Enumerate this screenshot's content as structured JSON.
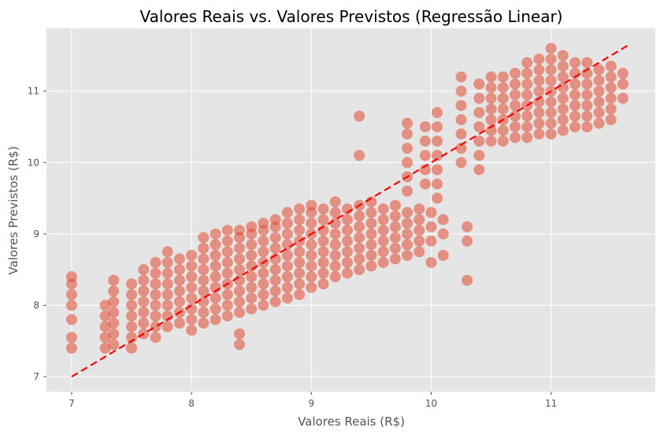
{
  "chart_data": {
    "type": "scatter",
    "title": "Valores Reais vs. Valores Previstos (Regressão Linear)",
    "xlabel": "Valores Reais (R$)",
    "ylabel": "Valores Previstos (R$)",
    "xlim": [
      6.79,
      11.87
    ],
    "ylim": [
      6.79,
      11.88
    ],
    "xticks": [
      7,
      8,
      9,
      10,
      11
    ],
    "yticks": [
      7,
      8,
      9,
      10,
      11
    ],
    "grid": true,
    "style": "ggplot",
    "point_color": "#E24A33",
    "point_alpha": 0.35,
    "reference_line": {
      "from": [
        7.0,
        7.0
      ],
      "to": [
        11.65,
        11.65
      ],
      "color": "#FF0000",
      "style": "dashed"
    },
    "point_groups": [
      {
        "x": 7.0,
        "y": [
          7.4,
          7.55,
          7.8,
          8.0,
          8.15,
          8.3,
          8.4
        ]
      },
      {
        "x": 7.28,
        "y": [
          7.4,
          7.55,
          7.7,
          7.85,
          8.0
        ]
      },
      {
        "x": 7.35,
        "y": [
          7.45,
          7.6,
          7.75,
          7.9,
          8.05,
          8.2,
          8.35
        ]
      },
      {
        "x": 7.5,
        "y": [
          7.4,
          7.55,
          7.7,
          7.85,
          8.0,
          8.15,
          8.3
        ]
      },
      {
        "x": 7.6,
        "y": [
          7.6,
          7.75,
          7.9,
          8.05,
          8.2,
          8.35,
          8.5
        ]
      },
      {
        "x": 7.7,
        "y": [
          7.55,
          7.7,
          7.85,
          8.0,
          8.15,
          8.3,
          8.45,
          8.6
        ]
      },
      {
        "x": 7.8,
        "y": [
          7.7,
          7.85,
          8.0,
          8.15,
          8.3,
          8.45,
          8.6,
          8.75
        ]
      },
      {
        "x": 7.9,
        "y": [
          7.75,
          7.9,
          8.05,
          8.2,
          8.35,
          8.5,
          8.65
        ]
      },
      {
        "x": 8.0,
        "y": [
          7.65,
          7.8,
          7.95,
          8.1,
          8.25,
          8.4,
          8.55,
          8.7
        ]
      },
      {
        "x": 8.1,
        "y": [
          7.75,
          7.9,
          8.05,
          8.2,
          8.35,
          8.5,
          8.65,
          8.8,
          8.95
        ]
      },
      {
        "x": 8.2,
        "y": [
          7.8,
          7.95,
          8.1,
          8.25,
          8.4,
          8.55,
          8.7,
          8.85,
          9.0
        ]
      },
      {
        "x": 8.3,
        "y": [
          7.85,
          8.0,
          8.15,
          8.3,
          8.45,
          8.6,
          8.75,
          8.9,
          9.05
        ]
      },
      {
        "x": 8.4,
        "y": [
          7.45,
          7.6,
          7.9,
          8.05,
          8.2,
          8.35,
          8.5,
          8.65,
          8.8,
          8.95,
          9.05
        ]
      },
      {
        "x": 8.5,
        "y": [
          7.95,
          8.1,
          8.25,
          8.4,
          8.55,
          8.7,
          8.85,
          9.0,
          9.1
        ]
      },
      {
        "x": 8.6,
        "y": [
          8.0,
          8.15,
          8.3,
          8.45,
          8.6,
          8.75,
          8.9,
          9.05,
          9.15
        ]
      },
      {
        "x": 8.7,
        "y": [
          8.05,
          8.2,
          8.35,
          8.5,
          8.65,
          8.8,
          8.95,
          9.1,
          9.2
        ]
      },
      {
        "x": 8.8,
        "y": [
          8.1,
          8.25,
          8.4,
          8.55,
          8.7,
          8.85,
          9.0,
          9.15,
          9.3
        ]
      },
      {
        "x": 8.9,
        "y": [
          8.15,
          8.3,
          8.45,
          8.6,
          8.75,
          8.9,
          9.05,
          9.2,
          9.35
        ]
      },
      {
        "x": 9.0,
        "y": [
          8.25,
          8.4,
          8.55,
          8.7,
          8.85,
          9.0,
          9.15,
          9.3,
          9.4
        ]
      },
      {
        "x": 9.1,
        "y": [
          8.3,
          8.45,
          8.6,
          8.75,
          8.9,
          9.05,
          9.2,
          9.35
        ]
      },
      {
        "x": 9.2,
        "y": [
          8.4,
          8.55,
          8.7,
          8.85,
          9.0,
          9.15,
          9.3,
          9.45
        ]
      },
      {
        "x": 9.3,
        "y": [
          8.45,
          8.6,
          8.75,
          8.9,
          9.05,
          9.2,
          9.35
        ]
      },
      {
        "x": 9.4,
        "y": [
          8.5,
          8.65,
          8.8,
          8.95,
          9.1,
          9.25,
          9.4,
          10.1,
          10.65
        ]
      },
      {
        "x": 9.5,
        "y": [
          8.55,
          8.7,
          8.85,
          9.0,
          9.15,
          9.3,
          9.45
        ]
      },
      {
        "x": 9.6,
        "y": [
          8.6,
          8.75,
          8.9,
          9.05,
          9.2,
          9.35
        ]
      },
      {
        "x": 9.7,
        "y": [
          8.65,
          8.8,
          8.95,
          9.1,
          9.25,
          9.4
        ]
      },
      {
        "x": 9.8,
        "y": [
          8.7,
          8.85,
          9.0,
          9.15,
          9.3,
          9.6,
          9.8,
          10.0,
          10.2,
          10.4,
          10.55
        ]
      },
      {
        "x": 9.9,
        "y": [
          8.75,
          8.9,
          9.05,
          9.2,
          9.35
        ]
      },
      {
        "x": 9.95,
        "y": [
          9.7,
          9.9,
          10.1,
          10.3,
          10.5
        ]
      },
      {
        "x": 10.0,
        "y": [
          8.6,
          8.9,
          9.1,
          9.3
        ]
      },
      {
        "x": 10.05,
        "y": [
          9.5,
          9.7,
          9.9,
          10.1,
          10.3,
          10.5,
          10.7
        ]
      },
      {
        "x": 10.1,
        "y": [
          8.7,
          9.0,
          9.2
        ]
      },
      {
        "x": 10.25,
        "y": [
          10.0,
          10.2,
          10.4,
          10.6,
          10.8,
          11.0,
          11.2
        ]
      },
      {
        "x": 10.3,
        "y": [
          8.35,
          8.9,
          9.1
        ]
      },
      {
        "x": 10.4,
        "y": [
          9.9,
          10.1,
          10.3,
          10.5,
          10.7,
          10.9,
          11.1
        ]
      },
      {
        "x": 10.5,
        "y": [
          10.3,
          10.45,
          10.6,
          10.75,
          10.9,
          11.05,
          11.2
        ]
      },
      {
        "x": 10.6,
        "y": [
          10.3,
          10.45,
          10.6,
          10.75,
          10.9,
          11.05,
          11.2
        ]
      },
      {
        "x": 10.7,
        "y": [
          10.35,
          10.5,
          10.65,
          10.8,
          10.95,
          11.1,
          11.25
        ]
      },
      {
        "x": 10.8,
        "y": [
          10.35,
          10.5,
          10.65,
          10.8,
          10.95,
          11.1,
          11.25,
          11.4
        ]
      },
      {
        "x": 10.9,
        "y": [
          10.4,
          10.55,
          10.7,
          10.85,
          11.0,
          11.15,
          11.3,
          11.45
        ]
      },
      {
        "x": 11.0,
        "y": [
          10.4,
          10.55,
          10.7,
          10.85,
          11.0,
          11.15,
          11.3,
          11.45,
          11.6
        ]
      },
      {
        "x": 11.1,
        "y": [
          10.45,
          10.6,
          10.75,
          10.9,
          11.05,
          11.2,
          11.35,
          11.5
        ]
      },
      {
        "x": 11.2,
        "y": [
          10.5,
          10.65,
          10.8,
          10.95,
          11.1,
          11.25,
          11.4
        ]
      },
      {
        "x": 11.3,
        "y": [
          10.5,
          10.65,
          10.8,
          10.95,
          11.1,
          11.25,
          11.4
        ]
      },
      {
        "x": 11.4,
        "y": [
          10.55,
          10.7,
          10.85,
          11.0,
          11.15,
          11.3
        ]
      },
      {
        "x": 11.5,
        "y": [
          10.6,
          10.75,
          10.9,
          11.05,
          11.2,
          11.35
        ]
      },
      {
        "x": 11.6,
        "y": [
          10.9,
          11.1,
          11.25
        ]
      }
    ]
  }
}
